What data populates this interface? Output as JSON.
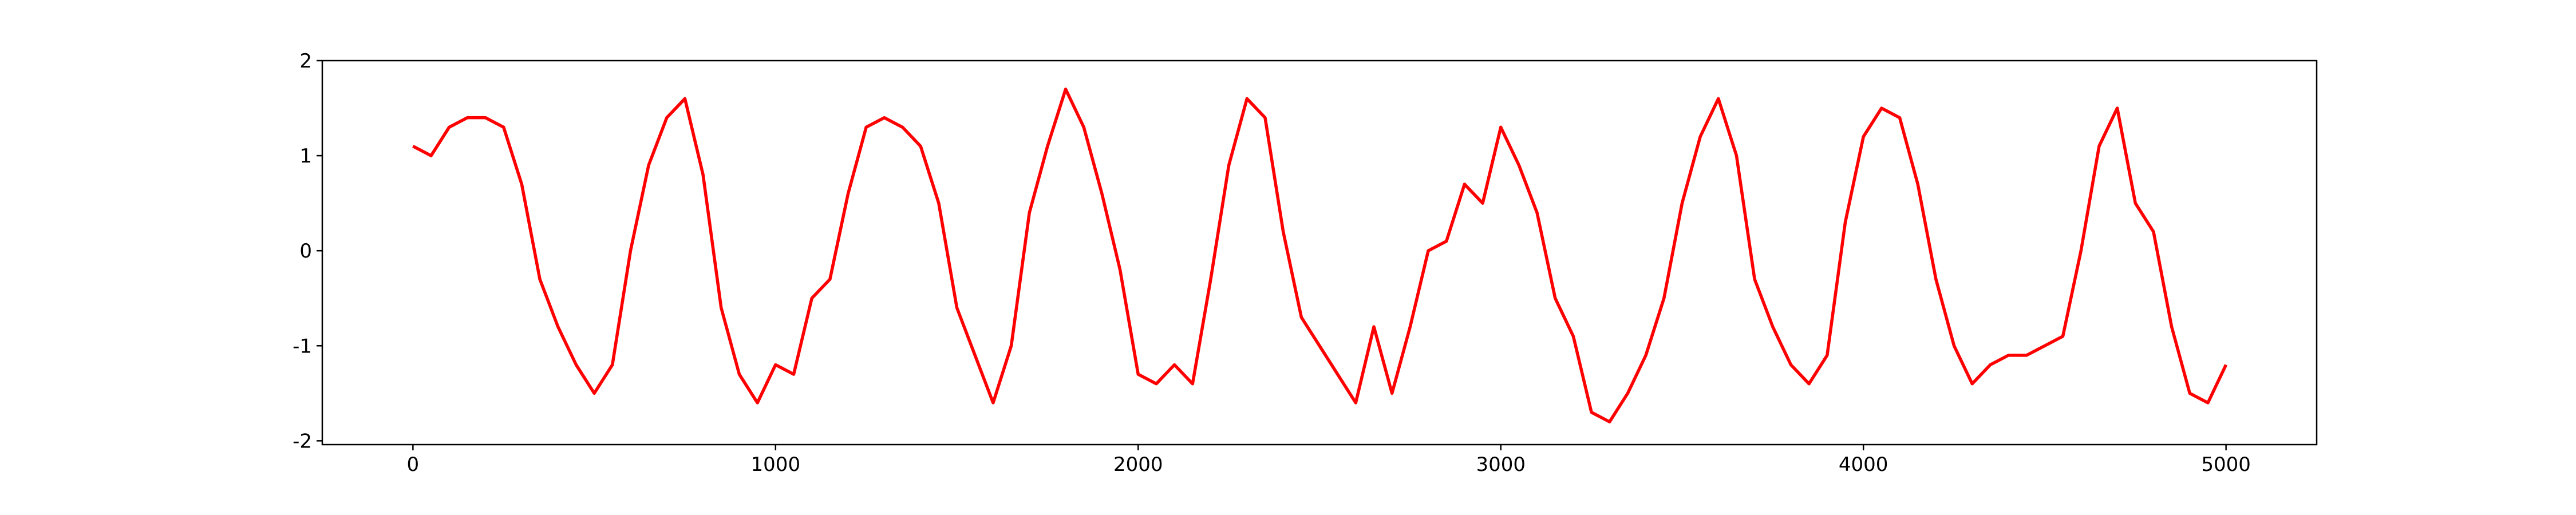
{
  "chart_data": {
    "type": "line",
    "x": [
      0,
      50,
      100,
      150,
      200,
      250,
      300,
      350,
      400,
      450,
      500,
      550,
      600,
      650,
      700,
      750,
      800,
      850,
      900,
      950,
      1000,
      1050,
      1100,
      1150,
      1200,
      1250,
      1300,
      1350,
      1400,
      1450,
      1500,
      1550,
      1600,
      1650,
      1700,
      1750,
      1800,
      1850,
      1900,
      1950,
      2000,
      2050,
      2100,
      2150,
      2200,
      2250,
      2300,
      2350,
      2400,
      2450,
      2500,
      2550,
      2600,
      2650,
      2700,
      2750,
      2800,
      2850,
      2900,
      2950,
      3000,
      3050,
      3100,
      3150,
      3200,
      3250,
      3300,
      3350,
      3400,
      3450,
      3500,
      3550,
      3600,
      3650,
      3700,
      3750,
      3800,
      3850,
      3900,
      3950,
      4000,
      4050,
      4100,
      4150,
      4200,
      4250,
      4300,
      4350,
      4400,
      4450,
      4500,
      4550,
      4600,
      4650,
      4700,
      4750,
      4800,
      4850,
      4900,
      4950,
      5000
    ],
    "series": [
      {
        "color": "#ff0000",
        "values": [
          1.1,
          1.0,
          1.3,
          1.4,
          1.4,
          1.3,
          0.7,
          -0.3,
          -0.8,
          -1.2,
          -1.5,
          -1.2,
          0.0,
          0.9,
          1.4,
          1.6,
          0.8,
          -0.6,
          -1.3,
          -1.6,
          -1.2,
          -1.3,
          -0.5,
          -0.3,
          0.6,
          1.3,
          1.4,
          1.3,
          1.1,
          0.5,
          -0.6,
          -1.1,
          -1.6,
          -1.0,
          0.4,
          1.1,
          1.7,
          1.3,
          0.6,
          -0.2,
          -1.3,
          -1.4,
          -1.2,
          -1.4,
          -0.3,
          0.9,
          1.6,
          1.4,
          0.2,
          -0.7,
          -1.0,
          -1.3,
          -1.6,
          -0.8,
          -1.5,
          -0.8,
          0.0,
          0.1,
          0.7,
          0.5,
          1.3,
          0.9,
          0.4,
          -0.5,
          -0.9,
          -1.7,
          -1.8,
          -1.5,
          -1.1,
          -0.5,
          0.5,
          1.2,
          1.6,
          1.0,
          -0.3,
          -0.8,
          -1.2,
          -1.4,
          -1.1,
          0.3,
          1.2,
          1.5,
          1.4,
          0.7,
          -0.3,
          -1.0,
          -1.4,
          -1.2,
          -1.1,
          -1.1,
          -1.0,
          -0.9,
          0.0,
          1.1,
          1.5,
          0.5,
          0.2,
          -0.8,
          -1.5,
          -1.6,
          -1.2
        ]
      }
    ],
    "xlim": [
      -250,
      5250
    ],
    "xticks": [
      0,
      1000,
      2000,
      3000,
      4000,
      5000
    ],
    "ylim": [
      -2.04,
      2.0
    ],
    "yticks": [
      -2,
      -1,
      0,
      1,
      2
    ],
    "grid": false
  }
}
